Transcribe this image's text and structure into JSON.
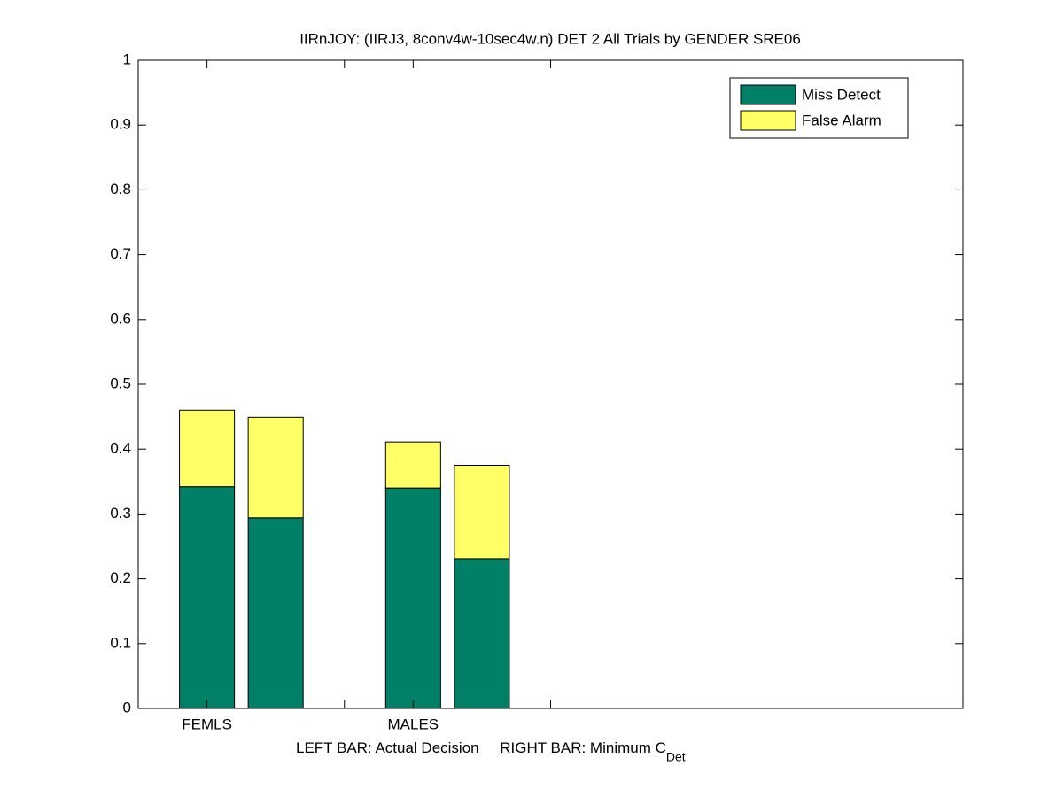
{
  "chart_data": {
    "type": "stacked_bar",
    "title": "IIRnJOY: (IIRJ3, 8conv4w-10sec4w.n) DET 2 All Trials by GENDER SRE06",
    "xlabel": "LEFT BAR: Actual Decision     RIGHT BAR: Minimum C",
    "xlabel_subscript": "Det",
    "x": [
      1,
      2,
      4,
      5
    ],
    "xlim": [
      0,
      12
    ],
    "xticks": [
      {
        "value": 1,
        "label": "FEMLS"
      },
      {
        "value": 3,
        "label": null
      },
      {
        "value": 4,
        "label": "MALES"
      },
      {
        "value": 6,
        "label": null
      }
    ],
    "ylim": [
      0,
      1
    ],
    "yticks": [
      0,
      0.1,
      0.2,
      0.3,
      0.4,
      0.5,
      0.6,
      0.7,
      0.8,
      0.9,
      1
    ],
    "legend": "upper right",
    "series": [
      {
        "name": "Miss Detect",
        "color": "#008066",
        "values": [
          0.342,
          0.294,
          0.34,
          0.231
        ]
      },
      {
        "name": "False Alarm",
        "color": "#ffff66",
        "values": [
          0.118,
          0.155,
          0.071,
          0.144
        ]
      }
    ]
  }
}
